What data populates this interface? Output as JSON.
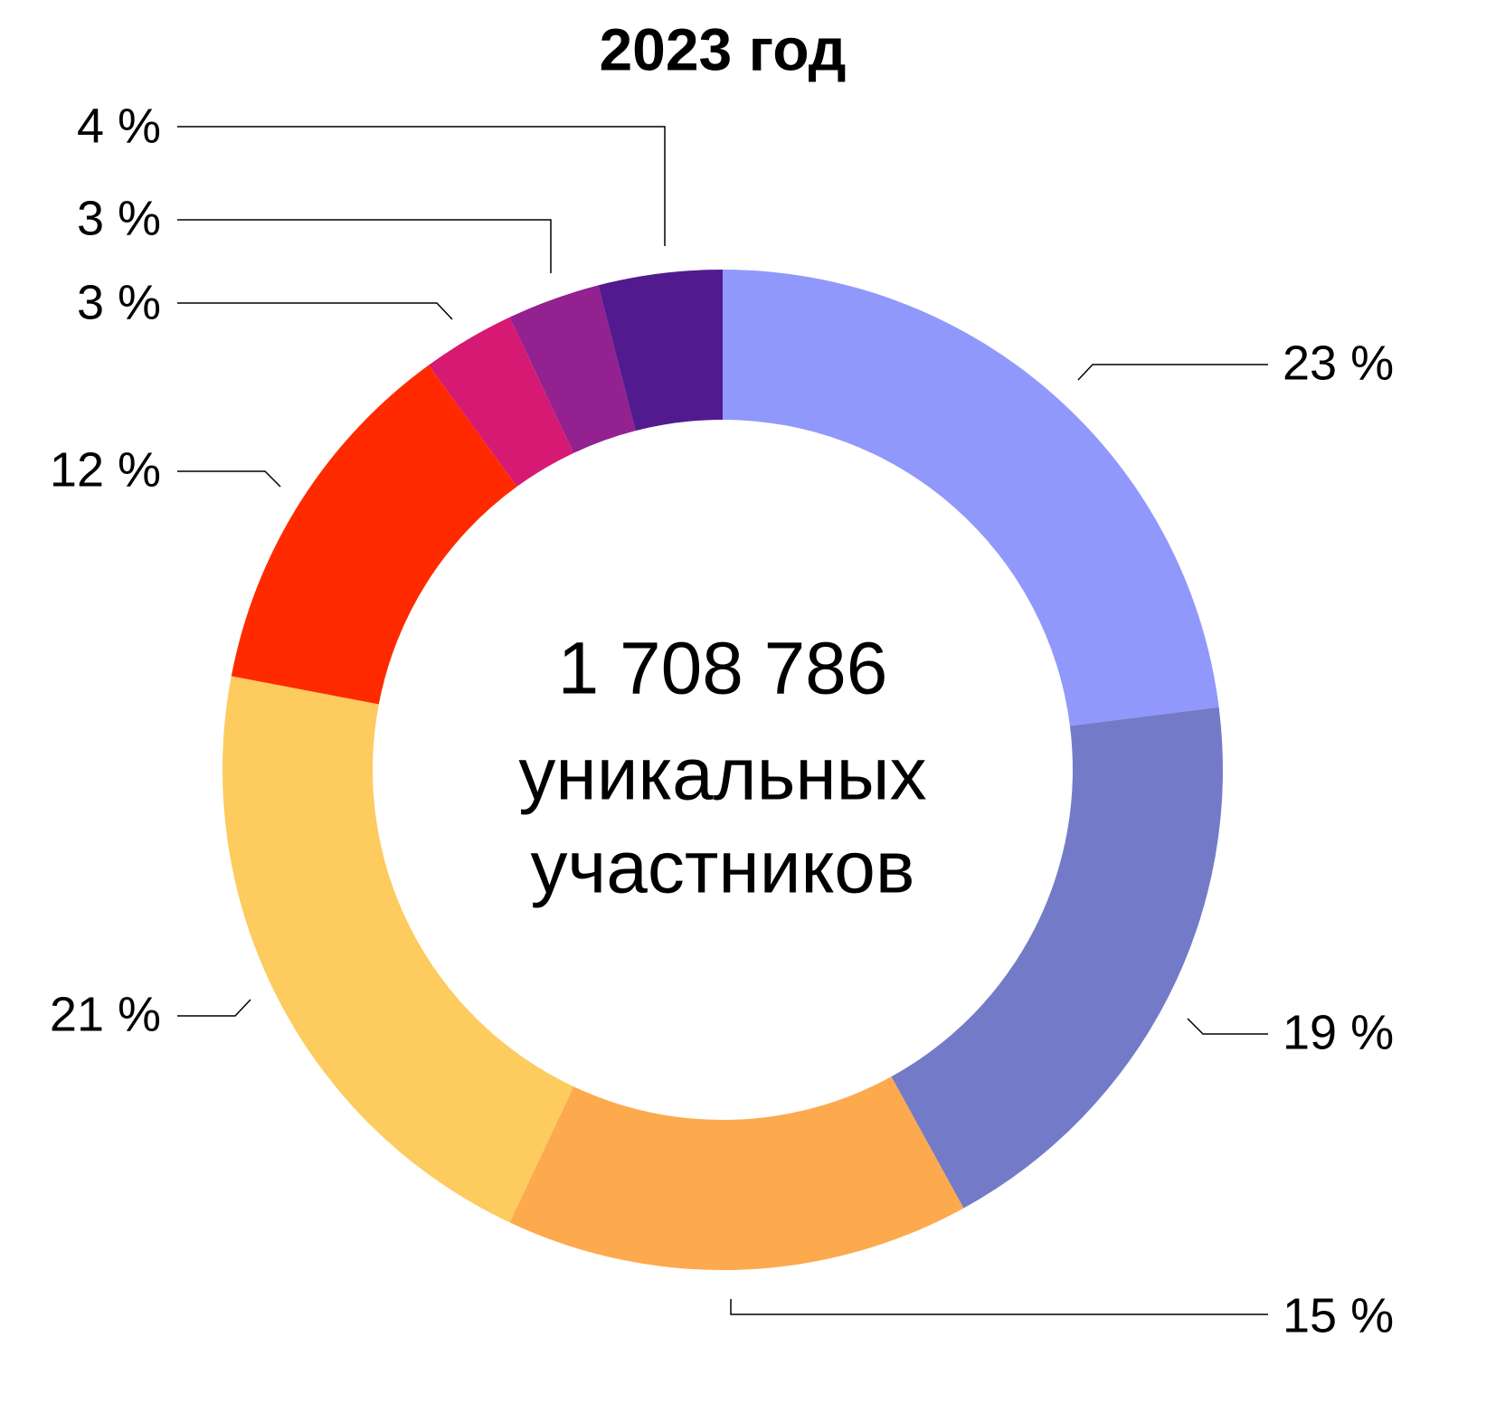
{
  "chart_data": {
    "type": "donut",
    "title": "2023 год",
    "center_text": [
      "1 708 786",
      "уникальных",
      "участников"
    ],
    "values": [
      23,
      19,
      15,
      21,
      12,
      3,
      3,
      4
    ],
    "value_labels": [
      "23 %",
      "19 %",
      "15 %",
      "21 %",
      "12 %",
      "3 %",
      "3 %",
      "4 %"
    ],
    "colors": [
      "#9198fb",
      "#737bc8",
      "#fda94e",
      "#fdcb5e",
      "#ff2a00",
      "#d61a74",
      "#93218f",
      "#521a8f"
    ]
  }
}
